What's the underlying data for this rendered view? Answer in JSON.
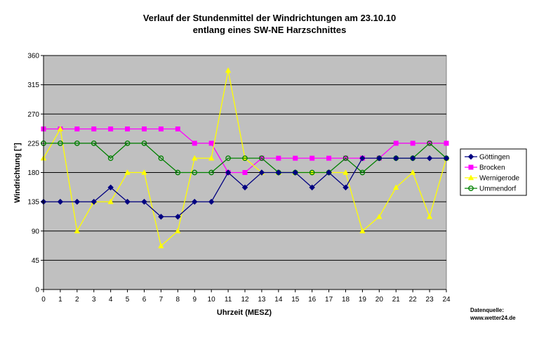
{
  "chart_data": {
    "type": "line",
    "title_line1": "Verlauf der Stundenmittel der Windrichtungen am 23.10.10",
    "title_line2": "entlang eines SW-NE Harzschnittes",
    "xlabel": "Uhrzeit (MESZ)",
    "ylabel": "Windrichtung [°]",
    "x": [
      0,
      1,
      2,
      3,
      4,
      5,
      6,
      7,
      8,
      9,
      10,
      11,
      12,
      13,
      14,
      15,
      16,
      17,
      18,
      19,
      20,
      21,
      22,
      23,
      24
    ],
    "xlim": [
      0,
      24
    ],
    "ylim": [
      0,
      360
    ],
    "yticks": [
      0,
      45,
      90,
      135,
      180,
      225,
      270,
      315,
      360
    ],
    "grid": true,
    "legend_position": "right",
    "plot_background": "#c0c0c0",
    "series": [
      {
        "name": "Göttingen",
        "color": "#000080",
        "marker": "diamond",
        "values": [
          135,
          135,
          135,
          135,
          157,
          135,
          135,
          112,
          112,
          135,
          135,
          180,
          157,
          180,
          180,
          180,
          157,
          180,
          157,
          202,
          202,
          202,
          202,
          202,
          202
        ]
      },
      {
        "name": "Brocken",
        "color": "#ff00ff",
        "marker": "square",
        "values": [
          247,
          247,
          247,
          247,
          247,
          247,
          247,
          247,
          247,
          225,
          225,
          180,
          180,
          202,
          202,
          202,
          202,
          202,
          202,
          202,
          202,
          225,
          225,
          225,
          225
        ]
      },
      {
        "name": "Wernigerode",
        "color": "#ffff00",
        "marker": "triangle",
        "values": [
          202,
          247,
          90,
          135,
          135,
          180,
          180,
          67,
          90,
          202,
          202,
          337,
          202,
          180,
          180,
          180,
          180,
          180,
          180,
          90,
          112,
          157,
          180,
          112,
          202
        ]
      },
      {
        "name": "Ummendorf",
        "color": "#008000",
        "marker": "circle",
        "values": [
          225,
          225,
          225,
          225,
          202,
          225,
          225,
          202,
          180,
          180,
          180,
          202,
          202,
          202,
          180,
          180,
          180,
          180,
          202,
          180,
          202,
          202,
          202,
          225,
          202
        ]
      }
    ]
  },
  "source_line1": "Datenquelle:",
  "source_line2": "www.wetter24.de"
}
